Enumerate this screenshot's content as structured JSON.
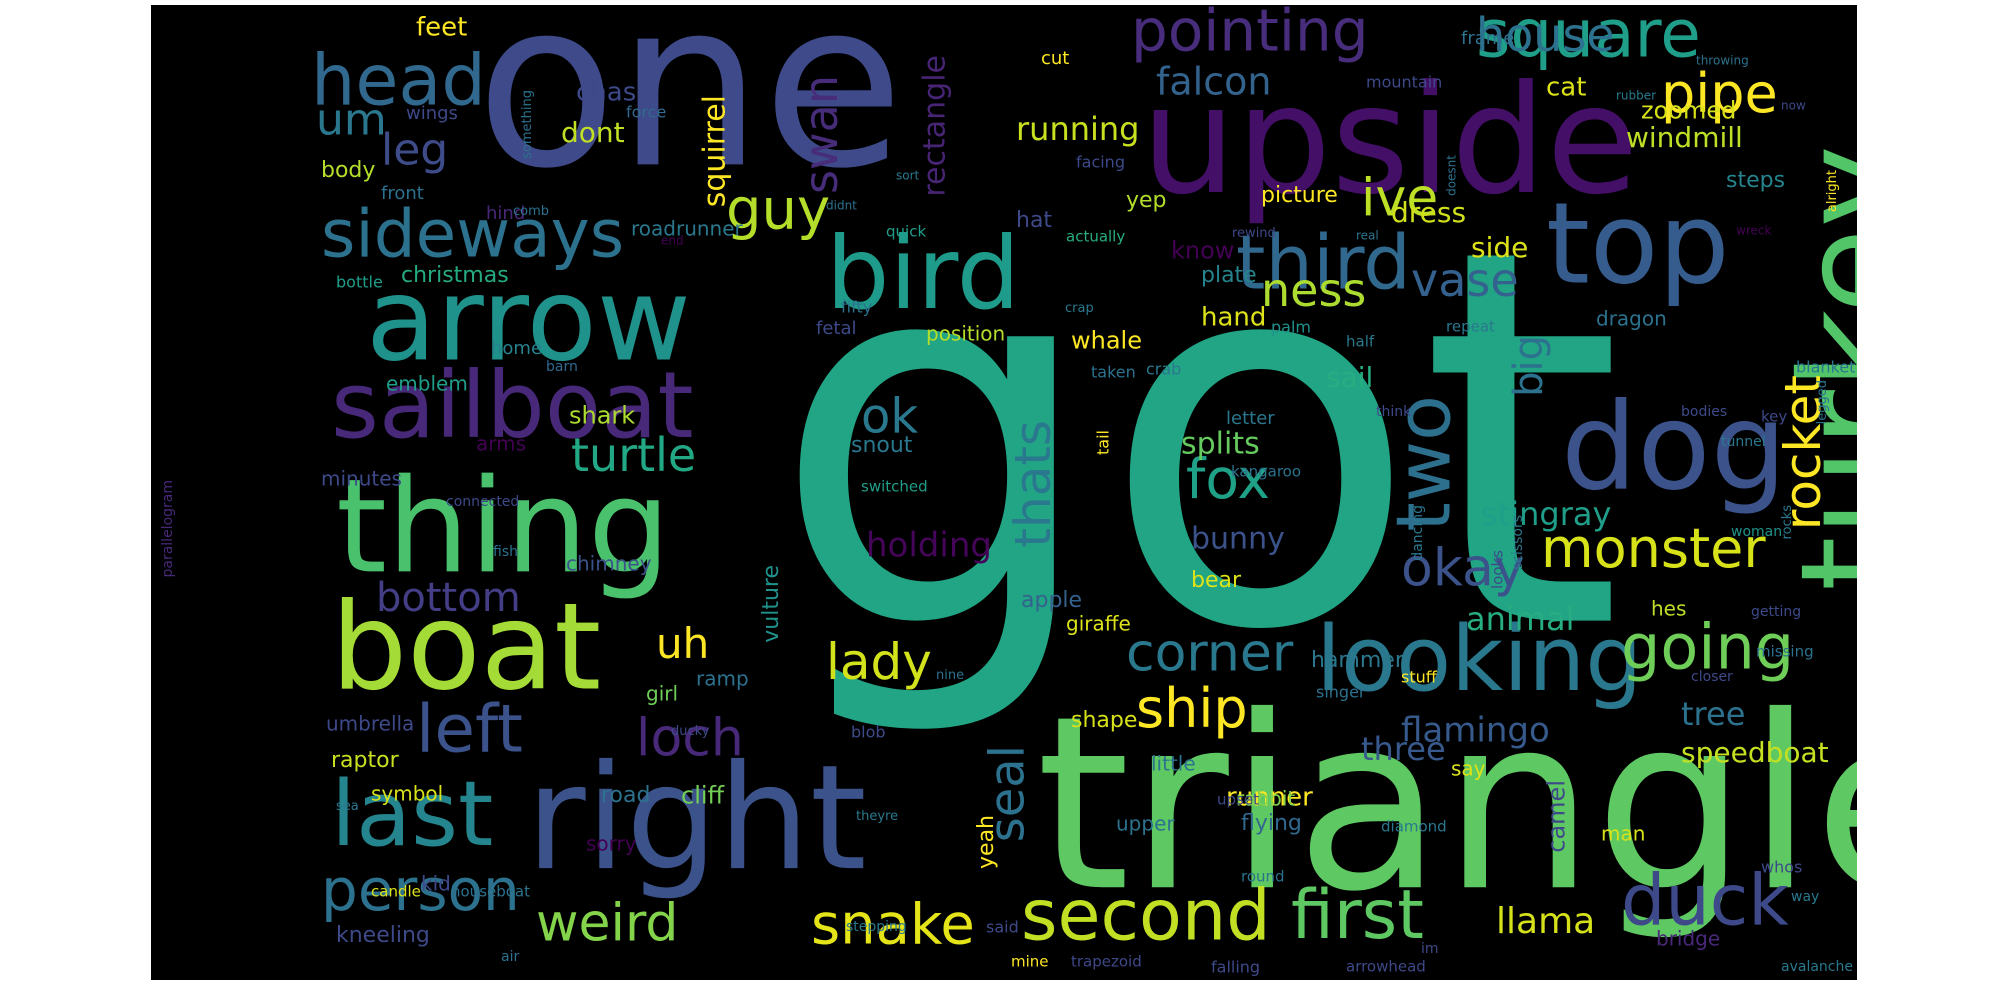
{
  "image": {
    "background": "#000000",
    "palette": [
      "#440154",
      "#482878",
      "#3e4989",
      "#31688e",
      "#26828e",
      "#1f9e89",
      "#35b779",
      "#6ece58",
      "#b5de2b",
      "#fde725"
    ]
  },
  "words": [
    {
      "text": "got",
      "color": "#21a585"
    },
    {
      "text": "one",
      "color": "#3e4a89"
    },
    {
      "text": "triangle",
      "color": "#5ec962"
    },
    {
      "text": "upside",
      "color": "#440f66"
    },
    {
      "text": "right",
      "color": "#3b528b"
    },
    {
      "text": "turkey",
      "color": "#52c569"
    },
    {
      "text": "boat",
      "color": "#a5db36"
    },
    {
      "text": "thing",
      "color": "#4ac16d"
    },
    {
      "text": "arrow",
      "color": "#20928c"
    },
    {
      "text": "bird",
      "color": "#1e9b8a"
    },
    {
      "text": "top",
      "color": "#365c8d"
    },
    {
      "text": "dog",
      "color": "#3b528b"
    },
    {
      "text": "sailboat",
      "color": "#482878"
    },
    {
      "text": "looking",
      "color": "#2a788e"
    },
    {
      "text": "last",
      "color": "#25858e"
    },
    {
      "text": "second",
      "color": "#c2df23"
    },
    {
      "text": "third",
      "color": "#31688e"
    },
    {
      "text": "two",
      "color": "#2d708e"
    },
    {
      "text": "first",
      "color": "#5ec962"
    },
    {
      "text": "sideways",
      "color": "#2c728e"
    },
    {
      "text": "square",
      "color": "#1f9e89"
    },
    {
      "text": "pointing",
      "color": "#472d7b"
    },
    {
      "text": "head",
      "color": "#31688e"
    },
    {
      "text": "duck",
      "color": "#3e4989"
    },
    {
      "text": "going",
      "color": "#6ece58"
    },
    {
      "text": "person",
      "color": "#2c728e"
    },
    {
      "text": "left",
      "color": "#3b528b"
    },
    {
      "text": "monster",
      "color": "#d8e219"
    },
    {
      "text": "corner",
      "color": "#2a788e"
    },
    {
      "text": "rocket",
      "color": "#fde725"
    },
    {
      "text": "snake",
      "color": "#e5e419"
    },
    {
      "text": "weird",
      "color": "#84d44b"
    },
    {
      "text": "fox",
      "color": "#1fa187"
    },
    {
      "text": "guy",
      "color": "#b5de2b"
    },
    {
      "text": "ship",
      "color": "#fde725"
    },
    {
      "text": "lady",
      "color": "#d2e21b"
    },
    {
      "text": "loch",
      "color": "#482878"
    },
    {
      "text": "turtle",
      "color": "#22a884"
    },
    {
      "text": "pipe",
      "color": "#fde725"
    },
    {
      "text": "house",
      "color": "#2c728e"
    },
    {
      "text": "okay",
      "color": "#3b528b"
    },
    {
      "text": "thats",
      "color": "#2a788e"
    },
    {
      "text": "ness",
      "color": "#addc30"
    },
    {
      "text": "seal",
      "color": "#2c728e"
    },
    {
      "text": "vase",
      "color": "#34618d"
    },
    {
      "text": "ive",
      "color": "#bddf26"
    },
    {
      "text": "swan",
      "color": "#472c7a"
    },
    {
      "text": "big",
      "color": "#2c728e"
    },
    {
      "text": "bottom",
      "color": "#433e85"
    },
    {
      "text": "uh",
      "color": "#fde725"
    },
    {
      "text": "ok",
      "color": "#2a788e"
    },
    {
      "text": "leg",
      "color": "#3e4c8a"
    },
    {
      "text": "um",
      "color": "#2a778e"
    },
    {
      "text": "falcon",
      "color": "#33638d"
    },
    {
      "text": "llama",
      "color": "#d5e21a"
    },
    {
      "text": "holding",
      "color": "#450559"
    },
    {
      "text": "running",
      "color": "#c8e020"
    },
    {
      "text": "flamingo",
      "color": "#375a8c"
    },
    {
      "text": "stingray",
      "color": "#1f9e89"
    },
    {
      "text": "animal",
      "color": "#26ad81"
    },
    {
      "text": "three",
      "color": "#38598c"
    },
    {
      "text": "splits",
      "color": "#65cb5e"
    },
    {
      "text": "bunny",
      "color": "#3b528b"
    },
    {
      "text": "rectangle",
      "color": "#482475"
    },
    {
      "text": "squirrel",
      "color": "#fde725"
    },
    {
      "text": "tree",
      "color": "#2c728e"
    },
    {
      "text": "speedboat",
      "color": "#c5e021"
    },
    {
      "text": "windmill",
      "color": "#bddf26"
    },
    {
      "text": "dress",
      "color": "#d0e11c"
    },
    {
      "text": "side",
      "color": "#dde318"
    },
    {
      "text": "sail",
      "color": "#26ad81"
    },
    {
      "text": "cliff",
      "color": "#73d056"
    },
    {
      "text": "whale",
      "color": "#fde725"
    },
    {
      "text": "hand",
      "color": "#dde318"
    },
    {
      "text": "camel",
      "color": "#3e4989"
    },
    {
      "text": "runner",
      "color": "#fde725"
    },
    {
      "text": "chase",
      "color": "#3e4989"
    },
    {
      "text": "cat",
      "color": "#dde318"
    },
    {
      "text": "zoomed",
      "color": "#d8e219"
    },
    {
      "text": "feet",
      "color": "#fde725"
    },
    {
      "text": "dont",
      "color": "#c2df23"
    },
    {
      "text": "shark",
      "color": "#addc30"
    },
    {
      "text": "apple",
      "color": "#34618d"
    },
    {
      "text": "hammer",
      "color": "#2a788e"
    },
    {
      "text": "vulture",
      "color": "#20928c"
    },
    {
      "text": "christmas",
      "color": "#25ab82"
    },
    {
      "text": "bear",
      "color": "#dde318"
    },
    {
      "text": "flying",
      "color": "#31688e"
    },
    {
      "text": "shape",
      "color": "#d8e219"
    },
    {
      "text": "arms",
      "color": "#440154"
    },
    {
      "text": "steps",
      "color": "#25848e"
    },
    {
      "text": "chimney",
      "color": "#3b528b"
    },
    {
      "text": "raptor",
      "color": "#c8e020"
    },
    {
      "text": "kneeling",
      "color": "#3e4989"
    },
    {
      "text": "yep",
      "color": "#b5de2b"
    },
    {
      "text": "position",
      "color": "#b5de2b"
    },
    {
      "text": "upper",
      "color": "#2c728e"
    },
    {
      "text": "body",
      "color": "#b5de2b"
    },
    {
      "text": "hat",
      "color": "#3e4989"
    },
    {
      "text": "picture",
      "color": "#fde725"
    },
    {
      "text": "snout",
      "color": "#2a788e"
    },
    {
      "text": "know",
      "color": "#440154"
    },
    {
      "text": "plate",
      "color": "#25848e"
    },
    {
      "text": "road",
      "color": "#2c728e"
    },
    {
      "text": "kid",
      "color": "#3e4989"
    },
    {
      "text": "yeah",
      "color": "#fde725"
    },
    {
      "text": "rabbit",
      "color": "#84d44b"
    },
    {
      "text": "dragon",
      "color": "#2c728e"
    },
    {
      "text": "giraffe",
      "color": "#dde318"
    },
    {
      "text": "roadrunner",
      "color": "#2a788e"
    },
    {
      "text": "emblem",
      "color": "#1f9e89"
    },
    {
      "text": "minutes",
      "color": "#3e4989"
    },
    {
      "text": "sorry",
      "color": "#440154"
    },
    {
      "text": "say",
      "color": "#dde318"
    },
    {
      "text": "man",
      "color": "#d8e219"
    },
    {
      "text": "umbrella",
      "color": "#3e4989"
    },
    {
      "text": "little",
      "color": "#2c728e"
    },
    {
      "text": "symbol",
      "color": "#d8e219"
    },
    {
      "text": "girl",
      "color": "#6ece58"
    },
    {
      "text": "ramp",
      "color": "#2c728e"
    },
    {
      "text": "letter",
      "color": "#2a788e"
    },
    {
      "text": "bridge",
      "color": "#482878"
    },
    {
      "text": "hes",
      "color": "#bddf26"
    },
    {
      "text": "home",
      "color": "#26828e"
    },
    {
      "text": "facing",
      "color": "#3e4989"
    },
    {
      "text": "fetal",
      "color": "#3e4989"
    },
    {
      "text": "front",
      "color": "#2c728e"
    },
    {
      "text": "cut",
      "color": "#fde725"
    },
    {
      "text": "frame",
      "color": "#2c728e"
    },
    {
      "text": "mountain",
      "color": "#3e4989"
    },
    {
      "text": "wings",
      "color": "#3e4989"
    },
    {
      "text": "force",
      "color": "#31688e"
    },
    {
      "text": "hind",
      "color": "#482878"
    },
    {
      "text": "quick",
      "color": "#1f9e89"
    },
    {
      "text": "actually",
      "color": "#26ad81"
    },
    {
      "text": "fifty",
      "color": "#2c728e"
    },
    {
      "text": "bottle",
      "color": "#1f9e89"
    },
    {
      "text": "palm",
      "color": "#20928c"
    },
    {
      "text": "crab",
      "color": "#2a788e"
    },
    {
      "text": "taken",
      "color": "#2c728e"
    },
    {
      "text": "blanket",
      "color": "#2a788e"
    },
    {
      "text": "tail",
      "color": "#fde725"
    },
    {
      "text": "switched",
      "color": "#1f9e89"
    },
    {
      "text": "kangaroo",
      "color": "#2c728e"
    },
    {
      "text": "stuff",
      "color": "#fde725"
    },
    {
      "text": "singer",
      "color": "#2c728e"
    },
    {
      "text": "blob",
      "color": "#3e4989"
    },
    {
      "text": "upset",
      "color": "#3e4989"
    },
    {
      "text": "diamond",
      "color": "#2a788e"
    },
    {
      "text": "round",
      "color": "#2c728e"
    },
    {
      "text": "candle",
      "color": "#dde318"
    },
    {
      "text": "houseboat",
      "color": "#2c728e"
    },
    {
      "text": "stepping",
      "color": "#2a788e"
    },
    {
      "text": "trapezoid",
      "color": "#3e4989"
    },
    {
      "text": "falling",
      "color": "#3e4989"
    },
    {
      "text": "arrowhead",
      "color": "#3e4989"
    },
    {
      "text": "mine",
      "color": "#fde725"
    },
    {
      "text": "air",
      "color": "#2c728e"
    },
    {
      "text": "said",
      "color": "#3e4989"
    },
    {
      "text": "whos",
      "color": "#3e4989"
    },
    {
      "text": "way",
      "color": "#2a788e"
    },
    {
      "text": "avalanche",
      "color": "#2a788e"
    },
    {
      "text": "woman",
      "color": "#20928c"
    },
    {
      "text": "missing",
      "color": "#2c728e"
    },
    {
      "text": "getting",
      "color": "#3e4989"
    },
    {
      "text": "closer",
      "color": "#3e4989"
    },
    {
      "text": "scissors",
      "color": "#2a788e"
    },
    {
      "text": "dancing",
      "color": "#2a788e"
    },
    {
      "text": "looks",
      "color": "#3e4989"
    },
    {
      "text": "think",
      "color": "#3e4989"
    },
    {
      "text": "bodies",
      "color": "#3e4989"
    },
    {
      "text": "tunnel",
      "color": "#2a788e"
    },
    {
      "text": "key",
      "color": "#3e4989"
    },
    {
      "text": "rocks",
      "color": "#2a788e"
    },
    {
      "text": "legged",
      "color": "#2c728e"
    },
    {
      "text": "half",
      "color": "#2a788e"
    },
    {
      "text": "repeat",
      "color": "#2a788e"
    },
    {
      "text": "barn",
      "color": "#31688e"
    },
    {
      "text": "parallelogram",
      "color": "#482878"
    },
    {
      "text": "connected",
      "color": "#3e4989"
    },
    {
      "text": "fish",
      "color": "#2c728e"
    },
    {
      "text": "nine",
      "color": "#2c728e"
    },
    {
      "text": "ducky",
      "color": "#3e4989"
    },
    {
      "text": "sea",
      "color": "#2a788e"
    },
    {
      "text": "theyre",
      "color": "#2a788e"
    },
    {
      "text": "im",
      "color": "#3e4989"
    },
    {
      "text": "crap",
      "color": "#2a788e"
    },
    {
      "text": "comb",
      "color": "#2c728e"
    },
    {
      "text": "end",
      "color": "#440154"
    },
    {
      "text": "didnt",
      "color": "#2c728e"
    },
    {
      "text": "sort",
      "color": "#2a788e"
    },
    {
      "text": "something",
      "color": "#2c728e"
    },
    {
      "text": "doesnt",
      "color": "#2c728e"
    },
    {
      "text": "rewind",
      "color": "#3e4989"
    },
    {
      "text": "real",
      "color": "#2c728e"
    },
    {
      "text": "wreck",
      "color": "#440154"
    },
    {
      "text": "alright",
      "color": "#fde725"
    },
    {
      "text": "rubber",
      "color": "#2a788e"
    },
    {
      "text": "throwing",
      "color": "#2c728e"
    },
    {
      "text": "now",
      "color": "#3e4989"
    }
  ]
}
